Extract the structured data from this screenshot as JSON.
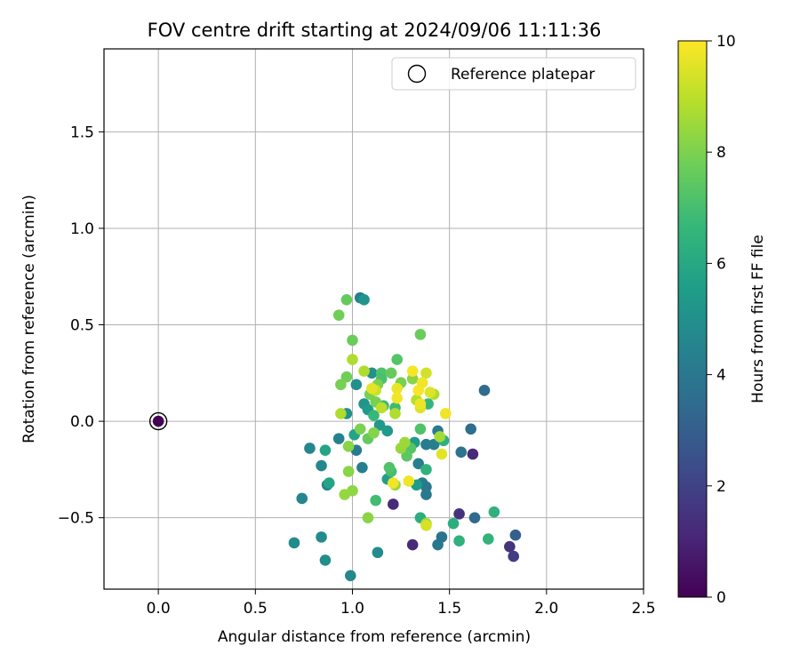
{
  "chart_data": {
    "type": "scatter",
    "title": "FOV centre drift starting at 2024/09/06 11:11:36",
    "xlabel": "Angular distance from reference (arcmin)",
    "ylabel": "Rotation from reference (arcmin)",
    "xlim": [
      -0.28,
      2.5
    ],
    "ylim": [
      -0.87,
      1.93
    ],
    "xticks": [
      0.0,
      0.5,
      1.0,
      1.5,
      2.0,
      2.5
    ],
    "xtick_labels": [
      "0.0",
      "0.5",
      "1.0",
      "1.5",
      "2.0",
      "2.5"
    ],
    "yticks": [
      -0.5,
      0.0,
      0.5,
      1.0,
      1.5
    ],
    "ytick_labels": [
      "−0.5",
      "0.0",
      "0.5",
      "1.0",
      "1.5"
    ],
    "grid": true,
    "legend": {
      "placement": "top-right",
      "entries": [
        "Reference platepar"
      ]
    },
    "reference": {
      "x": 0.0,
      "y": 0.0,
      "h": 0
    },
    "colorbar": {
      "label": "Hours from first FF file",
      "range": [
        0,
        10
      ],
      "ticks": [
        0,
        2,
        4,
        6,
        8,
        10
      ],
      "tick_labels": [
        "0",
        "2",
        "4",
        "6",
        "8",
        "10"
      ],
      "colormap_stops": [
        "#440154",
        "#482878",
        "#3e4989",
        "#31688e",
        "#26828e",
        "#1f9e89",
        "#35b779",
        "#6ece58",
        "#b5de2b",
        "#fde725"
      ]
    },
    "points": [
      {
        "x": 0.0,
        "y": 0.0,
        "h": 0.0
      },
      {
        "x": 1.81,
        "y": -0.65,
        "h": 1.5
      },
      {
        "x": 1.83,
        "y": -0.7,
        "h": 1.8
      },
      {
        "x": 1.31,
        "y": -0.64,
        "h": 1.2
      },
      {
        "x": 1.62,
        "y": -0.17,
        "h": 1.2
      },
      {
        "x": 1.55,
        "y": -0.48,
        "h": 1.4
      },
      {
        "x": 1.21,
        "y": -0.43,
        "h": 1.2
      },
      {
        "x": 1.84,
        "y": -0.59,
        "h": 3.0
      },
      {
        "x": 1.63,
        "y": -0.5,
        "h": 3.4
      },
      {
        "x": 1.68,
        "y": 0.16,
        "h": 3.5
      },
      {
        "x": 1.61,
        "y": -0.04,
        "h": 3.6
      },
      {
        "x": 1.56,
        "y": -0.16,
        "h": 3.8
      },
      {
        "x": 1.44,
        "y": -0.64,
        "h": 4.0
      },
      {
        "x": 1.46,
        "y": -0.6,
        "h": 3.8
      },
      {
        "x": 1.38,
        "y": -0.38,
        "h": 4.0
      },
      {
        "x": 1.36,
        "y": -0.32,
        "h": 4.2
      },
      {
        "x": 1.38,
        "y": -0.34,
        "h": 4.0
      },
      {
        "x": 1.34,
        "y": -0.22,
        "h": 4.3
      },
      {
        "x": 1.38,
        "y": -0.12,
        "h": 4.2
      },
      {
        "x": 1.42,
        "y": -0.12,
        "h": 4.3
      },
      {
        "x": 1.44,
        "y": -0.05,
        "h": 4.1
      },
      {
        "x": 1.04,
        "y": 0.64,
        "h": 4.3
      },
      {
        "x": 1.05,
        "y": -0.24,
        "h": 4.3
      },
      {
        "x": 1.02,
        "y": -0.15,
        "h": 4.2
      },
      {
        "x": 0.93,
        "y": -0.09,
        "h": 4.4
      },
      {
        "x": 0.87,
        "y": -0.33,
        "h": 4.5
      },
      {
        "x": 0.84,
        "y": -0.23,
        "h": 4.7
      },
      {
        "x": 0.78,
        "y": -0.14,
        "h": 4.6
      },
      {
        "x": 0.74,
        "y": -0.4,
        "h": 4.6
      },
      {
        "x": 0.7,
        "y": -0.63,
        "h": 4.8
      },
      {
        "x": 0.84,
        "y": -0.6,
        "h": 4.8
      },
      {
        "x": 0.86,
        "y": -0.72,
        "h": 4.9
      },
      {
        "x": 0.99,
        "y": -0.8,
        "h": 4.7
      },
      {
        "x": 1.13,
        "y": -0.68,
        "h": 4.8
      },
      {
        "x": 1.06,
        "y": 0.63,
        "h": 5.2
      },
      {
        "x": 1.1,
        "y": 0.25,
        "h": 5.0
      },
      {
        "x": 1.02,
        "y": 0.19,
        "h": 5.0
      },
      {
        "x": 0.97,
        "y": 0.04,
        "h": 5.0
      },
      {
        "x": 1.06,
        "y": 0.09,
        "h": 5.2
      },
      {
        "x": 1.08,
        "y": 0.06,
        "h": 5.4
      },
      {
        "x": 1.14,
        "y": -0.02,
        "h": 5.3
      },
      {
        "x": 1.18,
        "y": -0.05,
        "h": 5.4
      },
      {
        "x": 1.32,
        "y": -0.11,
        "h": 5.5
      },
      {
        "x": 1.33,
        "y": -0.33,
        "h": 5.5
      },
      {
        "x": 1.18,
        "y": -0.3,
        "h": 5.6
      },
      {
        "x": 0.88,
        "y": -0.32,
        "h": 5.8
      },
      {
        "x": 0.86,
        "y": -0.15,
        "h": 5.8
      },
      {
        "x": 1.01,
        "y": -0.07,
        "h": 5.8
      },
      {
        "x": 1.35,
        "y": -0.5,
        "h": 6.2
      },
      {
        "x": 1.52,
        "y": -0.53,
        "h": 6.2
      },
      {
        "x": 1.55,
        "y": -0.62,
        "h": 6.4
      },
      {
        "x": 1.7,
        "y": -0.61,
        "h": 6.5
      },
      {
        "x": 1.73,
        "y": -0.47,
        "h": 6.4
      },
      {
        "x": 1.38,
        "y": -0.25,
        "h": 6.4
      },
      {
        "x": 1.47,
        "y": -0.1,
        "h": 6.3
      },
      {
        "x": 1.39,
        "y": 0.09,
        "h": 6.6
      },
      {
        "x": 1.22,
        "y": 0.07,
        "h": 6.8
      },
      {
        "x": 1.16,
        "y": 0.08,
        "h": 6.8
      },
      {
        "x": 1.11,
        "y": 0.03,
        "h": 6.7
      },
      {
        "x": 1.12,
        "y": -0.41,
        "h": 6.9
      },
      {
        "x": 1.2,
        "y": -0.26,
        "h": 7.0
      },
      {
        "x": 1.19,
        "y": -0.24,
        "h": 7.2
      },
      {
        "x": 1.15,
        "y": 0.25,
        "h": 7.2
      },
      {
        "x": 1.15,
        "y": 0.22,
        "h": 7.1
      },
      {
        "x": 1.23,
        "y": 0.32,
        "h": 7.3
      },
      {
        "x": 1.35,
        "y": -0.04,
        "h": 7.2
      },
      {
        "x": 1.3,
        "y": -0.14,
        "h": 7.3
      },
      {
        "x": 1.28,
        "y": -0.18,
        "h": 7.4
      },
      {
        "x": 1.08,
        "y": -0.09,
        "h": 7.6
      },
      {
        "x": 0.97,
        "y": 0.63,
        "h": 7.6
      },
      {
        "x": 0.93,
        "y": 0.55,
        "h": 7.8
      },
      {
        "x": 1.0,
        "y": 0.42,
        "h": 7.7
      },
      {
        "x": 1.35,
        "y": 0.45,
        "h": 7.7
      },
      {
        "x": 0.97,
        "y": 0.23,
        "h": 7.8
      },
      {
        "x": 0.94,
        "y": 0.19,
        "h": 7.9
      },
      {
        "x": 1.09,
        "y": 0.14,
        "h": 7.9
      },
      {
        "x": 1.13,
        "y": 0.19,
        "h": 8.0
      },
      {
        "x": 1.2,
        "y": 0.25,
        "h": 7.6
      },
      {
        "x": 1.25,
        "y": 0.2,
        "h": 7.9
      },
      {
        "x": 1.12,
        "y": 0.1,
        "h": 7.9
      },
      {
        "x": 1.04,
        "y": -0.04,
        "h": 8.0
      },
      {
        "x": 1.11,
        "y": -0.06,
        "h": 8.1
      },
      {
        "x": 0.98,
        "y": -0.13,
        "h": 8.2
      },
      {
        "x": 0.98,
        "y": -0.26,
        "h": 8.2
      },
      {
        "x": 1.0,
        "y": -0.36,
        "h": 8.3
      },
      {
        "x": 0.96,
        "y": -0.38,
        "h": 8.4
      },
      {
        "x": 1.08,
        "y": -0.5,
        "h": 8.2
      },
      {
        "x": 1.22,
        "y": -0.33,
        "h": 8.4
      },
      {
        "x": 1.25,
        "y": -0.14,
        "h": 8.4
      },
      {
        "x": 1.27,
        "y": -0.11,
        "h": 8.5
      },
      {
        "x": 1.31,
        "y": 0.22,
        "h": 8.2
      },
      {
        "x": 1.38,
        "y": -0.53,
        "h": 8.6
      },
      {
        "x": 1.45,
        "y": -0.08,
        "h": 8.6
      },
      {
        "x": 1.42,
        "y": 0.14,
        "h": 8.8
      },
      {
        "x": 1.33,
        "y": 0.11,
        "h": 8.9
      },
      {
        "x": 1.22,
        "y": 0.04,
        "h": 8.8
      },
      {
        "x": 1.06,
        "y": 0.26,
        "h": 8.8
      },
      {
        "x": 1.0,
        "y": 0.32,
        "h": 8.8
      },
      {
        "x": 0.94,
        "y": 0.04,
        "h": 8.8
      },
      {
        "x": 1.15,
        "y": 0.07,
        "h": 9.0
      },
      {
        "x": 1.12,
        "y": 0.16,
        "h": 9.2
      },
      {
        "x": 1.38,
        "y": 0.25,
        "h": 9.3
      },
      {
        "x": 1.4,
        "y": 0.15,
        "h": 9.5
      },
      {
        "x": 1.35,
        "y": 0.07,
        "h": 9.5
      },
      {
        "x": 1.46,
        "y": -0.17,
        "h": 9.6
      },
      {
        "x": 1.38,
        "y": -0.54,
        "h": 9.4
      },
      {
        "x": 1.21,
        "y": -0.32,
        "h": 9.8
      },
      {
        "x": 1.29,
        "y": -0.31,
        "h": 9.8
      },
      {
        "x": 1.1,
        "y": 0.17,
        "h": 9.6
      },
      {
        "x": 1.23,
        "y": 0.17,
        "h": 9.7
      },
      {
        "x": 1.34,
        "y": 0.16,
        "h": 9.9
      },
      {
        "x": 1.36,
        "y": 0.2,
        "h": 9.8
      },
      {
        "x": 1.31,
        "y": 0.26,
        "h": 9.9
      },
      {
        "x": 1.48,
        "y": 0.04,
        "h": 9.8
      },
      {
        "x": 1.23,
        "y": 0.12,
        "h": 9.8
      },
      {
        "x": 1.35,
        "y": 0.09,
        "h": 9.7
      }
    ]
  }
}
